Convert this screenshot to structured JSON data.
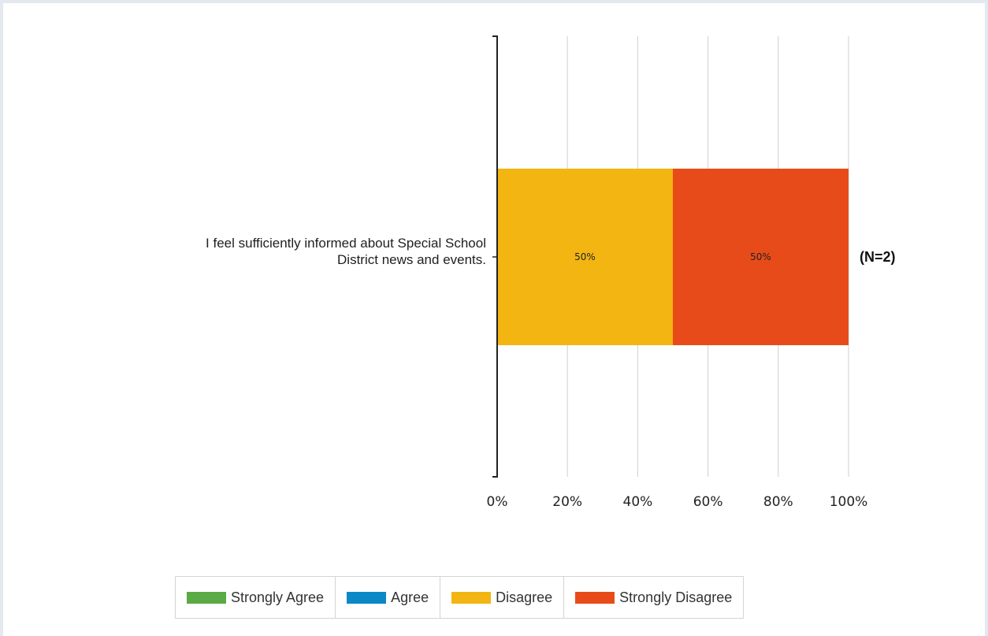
{
  "chart_data": {
    "type": "bar",
    "orientation": "horizontal",
    "stacked": true,
    "categories": [
      "I feel sufficiently informed about Special School District news and events."
    ],
    "category_label_lines": [
      "I feel sufficiently informed about Special School",
      "District news and events."
    ],
    "series": [
      {
        "name": "Strongly Agree",
        "values": [
          0
        ],
        "color": "#5aaa45"
      },
      {
        "name": "Agree",
        "values": [
          0
        ],
        "color": "#0b89c7"
      },
      {
        "name": "Disagree",
        "values": [
          50
        ],
        "color": "#f2b511"
      },
      {
        "name": "Strongly Disagree",
        "values": [
          50
        ],
        "color": "#e84b1a"
      }
    ],
    "data_labels": [
      "",
      "",
      "50%",
      "50%"
    ],
    "n_label": "(N=2)",
    "xlim": [
      0,
      100
    ],
    "xticks": [
      0,
      20,
      40,
      60,
      80,
      100
    ],
    "xtick_labels": [
      "0%",
      "20%",
      "40%",
      "60%",
      "80%",
      "100%"
    ],
    "grid": true,
    "legend_position": "bottom"
  }
}
